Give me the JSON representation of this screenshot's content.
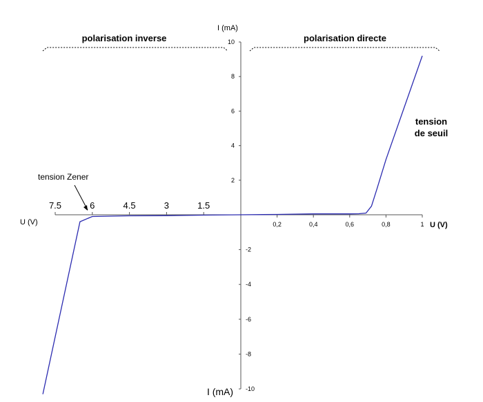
{
  "chart_data": {
    "type": "line",
    "title": "",
    "colors": {
      "curve": "#2b2bb0",
      "axis": "#555555",
      "text": "#000000"
    },
    "y_axis_label_top": "I (mA)",
    "y_axis_label_bottom": "I (mA)",
    "x_axis_label_left": "U (V)",
    "x_axis_label_right": "U (V)",
    "region_left_label": "polarisation inverse",
    "region_right_label": "polarisation directe",
    "annotation_threshold": [
      "tension",
      "de seuil"
    ],
    "annotation_zener": "tension Zener",
    "forward_x_ticks": [
      "0,2",
      "0,4",
      "0,6",
      "0,8",
      "1"
    ],
    "forward_x_tick_values": [
      0.2,
      0.4,
      0.6,
      0.8,
      1.0
    ],
    "reverse_x_ticks": [
      "7.5",
      "6",
      "4.5",
      "3",
      "1.5"
    ],
    "reverse_x_tick_values": [
      7.5,
      6,
      4.5,
      3,
      1.5
    ],
    "y_ticks_positive": [
      "10",
      "8",
      "6",
      "4",
      "2"
    ],
    "y_ticks_positive_values": [
      10,
      8,
      6,
      4,
      2
    ],
    "y_ticks_negative": [
      "-2",
      "-4",
      "-6",
      "-8",
      "-10"
    ],
    "y_ticks_negative_values": [
      -2,
      -4,
      -6,
      -8,
      -10
    ],
    "forward_xlim": [
      0,
      1
    ],
    "reverse_xlim": [
      0,
      7.5
    ],
    "ylim": [
      -10,
      10
    ],
    "series": [
      {
        "x_forward": [
          0.0,
          0.2,
          0.4,
          0.6,
          0.65,
          0.69,
          0.72,
          0.75,
          0.8,
          0.9,
          1.0
        ],
        "y_forward": [
          0.0,
          0.02,
          0.05,
          0.05,
          0.06,
          0.1,
          0.5,
          1.5,
          3.2,
          6.2,
          9.2
        ],
        "x_reverse": [
          0.0,
          1.5,
          3.0,
          4.5,
          6.0,
          6.5,
          8.0
        ],
        "y_reverse": [
          0.0,
          -0.02,
          -0.05,
          -0.06,
          -0.1,
          -0.4,
          -10.3
        ]
      }
    ]
  }
}
